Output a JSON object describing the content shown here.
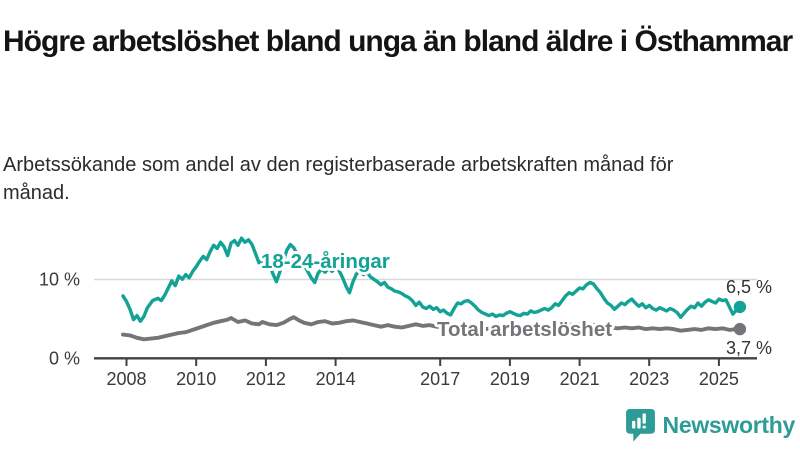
{
  "header": {
    "title": "Högre arbetslöshet bland unga än bland äldre i Östhammar",
    "subtitle": "Arbetssökande som andel av den registerbaserade arbetskraften månad för månad."
  },
  "footer": {
    "logo_text": "Newsworthy",
    "logo_color": "#2e9c96"
  },
  "chart_data": {
    "type": "line",
    "title": "Högre arbetslöshet bland unga än bland äldre i Östhammar",
    "subtitle": "Arbetssökande som andel av den registerbaserade arbetskraften månad för månad.",
    "xlabel": "",
    "ylabel": "",
    "x_range": [
      2007.9,
      2025.8
    ],
    "y_range": [
      0,
      16
    ],
    "grid": "horizontal-10-only",
    "legend_position": "inline-labels",
    "x_axis": {
      "ticks": [
        2008,
        2010,
        2012,
        2014,
        2017,
        2019,
        2021,
        2023,
        2025
      ],
      "tick_labels": [
        "2008",
        "2010",
        "2012",
        "2014",
        "2017",
        "2019",
        "2021",
        "2023",
        "2025"
      ]
    },
    "y_axis": {
      "ticks": [
        0,
        10
      ],
      "tick_labels": [
        "0 %",
        "10 %"
      ]
    },
    "colors": {
      "grid_line": "#d8d8d8",
      "axis_line": "#404040",
      "tick_text": "#3a3a3a",
      "end_label_text": "#333333"
    },
    "series": [
      {
        "name": "18-24-åringar",
        "color": "#12a296",
        "end_label": "6,5 %",
        "end_value": 6.5,
        "points": [
          [
            2007.9,
            7.9
          ],
          [
            2008.0,
            7.2
          ],
          [
            2008.1,
            6.2
          ],
          [
            2008.2,
            4.9
          ],
          [
            2008.3,
            5.4
          ],
          [
            2008.4,
            4.7
          ],
          [
            2008.5,
            5.3
          ],
          [
            2008.6,
            6.4
          ],
          [
            2008.75,
            7.3
          ],
          [
            2008.9,
            7.6
          ],
          [
            2009.0,
            7.3
          ],
          [
            2009.1,
            8.0
          ],
          [
            2009.2,
            8.9
          ],
          [
            2009.3,
            9.8
          ],
          [
            2009.4,
            9.2
          ],
          [
            2009.5,
            10.4
          ],
          [
            2009.6,
            10.0
          ],
          [
            2009.7,
            10.6
          ],
          [
            2009.8,
            10.2
          ],
          [
            2009.9,
            11.0
          ],
          [
            2010.0,
            11.6
          ],
          [
            2010.1,
            12.3
          ],
          [
            2010.2,
            12.9
          ],
          [
            2010.3,
            12.5
          ],
          [
            2010.4,
            13.5
          ],
          [
            2010.5,
            14.3
          ],
          [
            2010.6,
            13.9
          ],
          [
            2010.7,
            14.7
          ],
          [
            2010.8,
            14.1
          ],
          [
            2010.9,
            13.0
          ],
          [
            2011.0,
            14.6
          ],
          [
            2011.1,
            14.9
          ],
          [
            2011.2,
            14.3
          ],
          [
            2011.3,
            15.2
          ],
          [
            2011.4,
            14.7
          ],
          [
            2011.5,
            15.0
          ],
          [
            2011.6,
            14.4
          ],
          [
            2011.7,
            13.3
          ],
          [
            2011.8,
            12.1
          ],
          [
            2011.9,
            12.5
          ],
          [
            2012.0,
            11.4
          ],
          [
            2012.1,
            11.9
          ],
          [
            2012.2,
            10.7
          ],
          [
            2012.3,
            9.7
          ],
          [
            2012.4,
            10.9
          ],
          [
            2012.5,
            12.3
          ],
          [
            2012.6,
            13.7
          ],
          [
            2012.7,
            14.4
          ],
          [
            2012.8,
            14.0
          ],
          [
            2012.9,
            13.1
          ],
          [
            2013.0,
            12.3
          ],
          [
            2013.1,
            11.8
          ],
          [
            2013.2,
            11.0
          ],
          [
            2013.3,
            10.2
          ],
          [
            2013.4,
            9.6
          ],
          [
            2013.5,
            10.8
          ],
          [
            2013.6,
            11.3
          ],
          [
            2013.7,
            10.9
          ],
          [
            2013.8,
            11.4
          ],
          [
            2013.9,
            11.0
          ],
          [
            2014.0,
            11.5
          ],
          [
            2014.1,
            11.1
          ],
          [
            2014.2,
            10.2
          ],
          [
            2014.3,
            9.1
          ],
          [
            2014.4,
            8.3
          ],
          [
            2014.5,
            9.7
          ],
          [
            2014.6,
            10.7
          ],
          [
            2014.7,
            11.0
          ],
          [
            2014.8,
            10.6
          ],
          [
            2014.9,
            10.9
          ],
          [
            2015.0,
            10.3
          ],
          [
            2015.1,
            10.0
          ],
          [
            2015.2,
            9.7
          ],
          [
            2015.3,
            9.3
          ],
          [
            2015.4,
            9.6
          ],
          [
            2015.5,
            9.0
          ],
          [
            2015.6,
            8.8
          ],
          [
            2015.7,
            8.5
          ],
          [
            2015.8,
            8.4
          ],
          [
            2015.9,
            8.2
          ],
          [
            2016.0,
            7.9
          ],
          [
            2016.1,
            7.7
          ],
          [
            2016.2,
            7.3
          ],
          [
            2016.3,
            6.7
          ],
          [
            2016.4,
            7.1
          ],
          [
            2016.5,
            6.5
          ],
          [
            2016.6,
            6.3
          ],
          [
            2016.7,
            6.6
          ],
          [
            2016.8,
            6.2
          ],
          [
            2016.9,
            6.4
          ],
          [
            2017.0,
            5.9
          ],
          [
            2017.1,
            6.1
          ],
          [
            2017.2,
            5.7
          ],
          [
            2017.3,
            5.5
          ],
          [
            2017.4,
            6.3
          ],
          [
            2017.5,
            7.0
          ],
          [
            2017.6,
            6.9
          ],
          [
            2017.7,
            7.2
          ],
          [
            2017.8,
            7.3
          ],
          [
            2017.9,
            7.0
          ],
          [
            2018.0,
            6.6
          ],
          [
            2018.1,
            6.1
          ],
          [
            2018.2,
            5.8
          ],
          [
            2018.3,
            5.6
          ],
          [
            2018.4,
            5.4
          ],
          [
            2018.5,
            5.6
          ],
          [
            2018.6,
            5.3
          ],
          [
            2018.7,
            5.5
          ],
          [
            2018.8,
            5.4
          ],
          [
            2018.9,
            5.7
          ],
          [
            2019.0,
            5.9
          ],
          [
            2019.1,
            5.7
          ],
          [
            2019.2,
            5.5
          ],
          [
            2019.3,
            5.4
          ],
          [
            2019.4,
            5.7
          ],
          [
            2019.5,
            5.6
          ],
          [
            2019.6,
            6.0
          ],
          [
            2019.7,
            5.8
          ],
          [
            2019.8,
            5.9
          ],
          [
            2019.9,
            6.1
          ],
          [
            2020.0,
            6.3
          ],
          [
            2020.1,
            6.1
          ],
          [
            2020.2,
            6.4
          ],
          [
            2020.3,
            6.9
          ],
          [
            2020.4,
            6.7
          ],
          [
            2020.5,
            7.3
          ],
          [
            2020.6,
            7.9
          ],
          [
            2020.7,
            8.3
          ],
          [
            2020.8,
            8.1
          ],
          [
            2020.9,
            8.5
          ],
          [
            2021.0,
            8.9
          ],
          [
            2021.1,
            8.8
          ],
          [
            2021.2,
            9.3
          ],
          [
            2021.3,
            9.6
          ],
          [
            2021.4,
            9.4
          ],
          [
            2021.5,
            8.8
          ],
          [
            2021.6,
            8.3
          ],
          [
            2021.7,
            7.6
          ],
          [
            2021.8,
            7.0
          ],
          [
            2021.9,
            6.7
          ],
          [
            2022.0,
            6.2
          ],
          [
            2022.1,
            6.6
          ],
          [
            2022.2,
            7.0
          ],
          [
            2022.3,
            6.8
          ],
          [
            2022.4,
            7.2
          ],
          [
            2022.5,
            7.5
          ],
          [
            2022.6,
            7.0
          ],
          [
            2022.7,
            6.6
          ],
          [
            2022.8,
            6.9
          ],
          [
            2022.9,
            6.4
          ],
          [
            2023.0,
            6.7
          ],
          [
            2023.1,
            6.3
          ],
          [
            2023.2,
            6.1
          ],
          [
            2023.3,
            6.4
          ],
          [
            2023.4,
            6.2
          ],
          [
            2023.5,
            6.0
          ],
          [
            2023.6,
            6.3
          ],
          [
            2023.7,
            6.1
          ],
          [
            2023.8,
            5.8
          ],
          [
            2023.9,
            5.2
          ],
          [
            2024.0,
            5.7
          ],
          [
            2024.1,
            6.2
          ],
          [
            2024.2,
            6.6
          ],
          [
            2024.3,
            6.4
          ],
          [
            2024.4,
            7.0
          ],
          [
            2024.5,
            6.6
          ],
          [
            2024.6,
            7.1
          ],
          [
            2024.7,
            7.4
          ],
          [
            2024.8,
            7.2
          ],
          [
            2024.9,
            7.0
          ],
          [
            2025.0,
            7.5
          ],
          [
            2025.1,
            7.3
          ],
          [
            2025.2,
            7.4
          ],
          [
            2025.3,
            6.5
          ],
          [
            2025.4,
            5.6
          ],
          [
            2025.5,
            6.1
          ],
          [
            2025.6,
            6.5
          ]
        ]
      },
      {
        "name": "Total arbetslöshet",
        "color": "#757579",
        "end_label": "3,7 %",
        "end_value": 3.7,
        "points": [
          [
            2007.9,
            3.0
          ],
          [
            2008.1,
            2.9
          ],
          [
            2008.3,
            2.6
          ],
          [
            2008.5,
            2.4
          ],
          [
            2008.7,
            2.5
          ],
          [
            2008.9,
            2.6
          ],
          [
            2009.1,
            2.8
          ],
          [
            2009.3,
            3.0
          ],
          [
            2009.5,
            3.2
          ],
          [
            2009.7,
            3.3
          ],
          [
            2009.9,
            3.6
          ],
          [
            2010.1,
            3.9
          ],
          [
            2010.3,
            4.2
          ],
          [
            2010.5,
            4.5
          ],
          [
            2010.7,
            4.7
          ],
          [
            2010.9,
            4.9
          ],
          [
            2011.0,
            5.1
          ],
          [
            2011.2,
            4.6
          ],
          [
            2011.4,
            4.8
          ],
          [
            2011.6,
            4.4
          ],
          [
            2011.8,
            4.3
          ],
          [
            2011.9,
            4.6
          ],
          [
            2012.1,
            4.3
          ],
          [
            2012.3,
            4.2
          ],
          [
            2012.5,
            4.5
          ],
          [
            2012.7,
            5.0
          ],
          [
            2012.8,
            5.2
          ],
          [
            2012.95,
            4.8
          ],
          [
            2013.1,
            4.5
          ],
          [
            2013.3,
            4.3
          ],
          [
            2013.5,
            4.6
          ],
          [
            2013.7,
            4.7
          ],
          [
            2013.9,
            4.4
          ],
          [
            2014.1,
            4.5
          ],
          [
            2014.3,
            4.7
          ],
          [
            2014.5,
            4.8
          ],
          [
            2014.7,
            4.6
          ],
          [
            2014.9,
            4.4
          ],
          [
            2015.1,
            4.2
          ],
          [
            2015.3,
            4.0
          ],
          [
            2015.5,
            4.2
          ],
          [
            2015.7,
            4.0
          ],
          [
            2015.9,
            3.9
          ],
          [
            2016.1,
            4.1
          ],
          [
            2016.3,
            4.3
          ],
          [
            2016.5,
            4.1
          ],
          [
            2016.7,
            4.2
          ],
          [
            2016.9,
            4.0
          ],
          [
            2017.1,
            3.9
          ],
          [
            2017.3,
            3.8
          ],
          [
            2017.5,
            4.0
          ],
          [
            2017.7,
            4.1
          ],
          [
            2017.9,
            3.9
          ],
          [
            2018.1,
            3.8
          ],
          [
            2018.3,
            3.7
          ],
          [
            2018.5,
            3.8
          ],
          [
            2018.7,
            3.9
          ],
          [
            2018.9,
            3.8
          ],
          [
            2019.1,
            3.7
          ],
          [
            2019.4,
            3.8
          ],
          [
            2019.7,
            3.9
          ],
          [
            2020.0,
            4.0
          ],
          [
            2020.3,
            4.1
          ],
          [
            2020.6,
            4.2
          ],
          [
            2020.9,
            4.3
          ],
          [
            2021.1,
            4.3
          ],
          [
            2021.4,
            4.2
          ],
          [
            2021.7,
            4.0
          ],
          [
            2021.9,
            3.9
          ],
          [
            2022.1,
            3.8
          ],
          [
            2022.3,
            3.9
          ],
          [
            2022.5,
            3.8
          ],
          [
            2022.7,
            3.9
          ],
          [
            2022.9,
            3.7
          ],
          [
            2023.1,
            3.8
          ],
          [
            2023.3,
            3.7
          ],
          [
            2023.5,
            3.8
          ],
          [
            2023.7,
            3.7
          ],
          [
            2023.9,
            3.5
          ],
          [
            2024.1,
            3.6
          ],
          [
            2024.3,
            3.7
          ],
          [
            2024.5,
            3.6
          ],
          [
            2024.7,
            3.8
          ],
          [
            2024.9,
            3.7
          ],
          [
            2025.1,
            3.8
          ],
          [
            2025.3,
            3.6
          ],
          [
            2025.5,
            3.7
          ],
          [
            2025.6,
            3.7
          ]
        ]
      }
    ]
  }
}
